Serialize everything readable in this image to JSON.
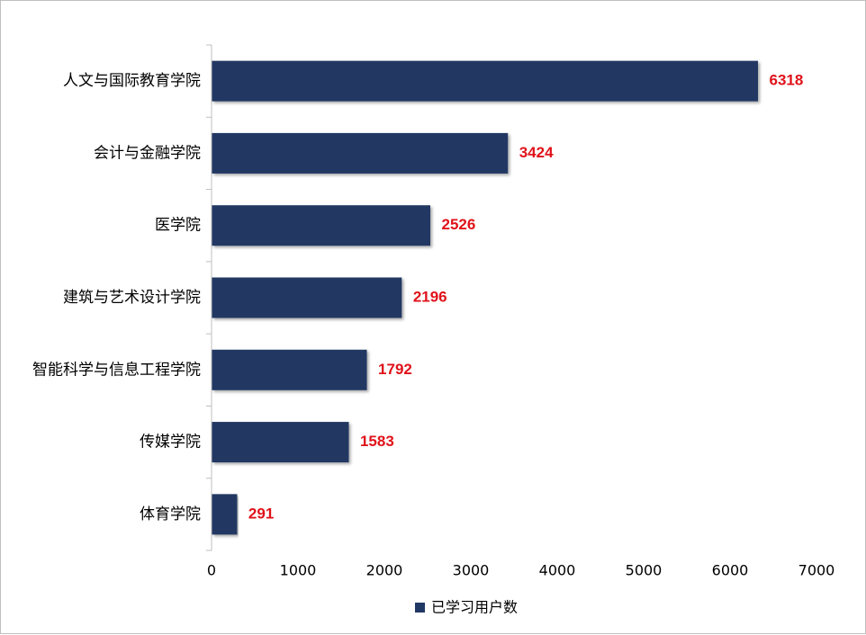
{
  "chart_data": {
    "type": "bar",
    "orientation": "horizontal",
    "categories": [
      "人文与国际教育学院",
      "会计与金融学院",
      "医学院",
      "建筑与艺术设计学院",
      "智能科学与信息工程学院",
      "传媒学院",
      "体育学院"
    ],
    "series": [
      {
        "name": "已学习用户数",
        "values": [
          6318,
          3424,
          2526,
          2196,
          1792,
          1583,
          291
        ]
      }
    ],
    "xlim": [
      0,
      7000
    ],
    "xticks": [
      "0",
      "1000",
      "2000",
      "3000",
      "4000",
      "5000",
      "6000",
      "7000"
    ],
    "grid": false,
    "legend_position": "bottom",
    "data_labels": true,
    "colors": {
      "bar": "#203864",
      "data_label": "#e0121a",
      "axis": "#bfbfbf"
    }
  }
}
